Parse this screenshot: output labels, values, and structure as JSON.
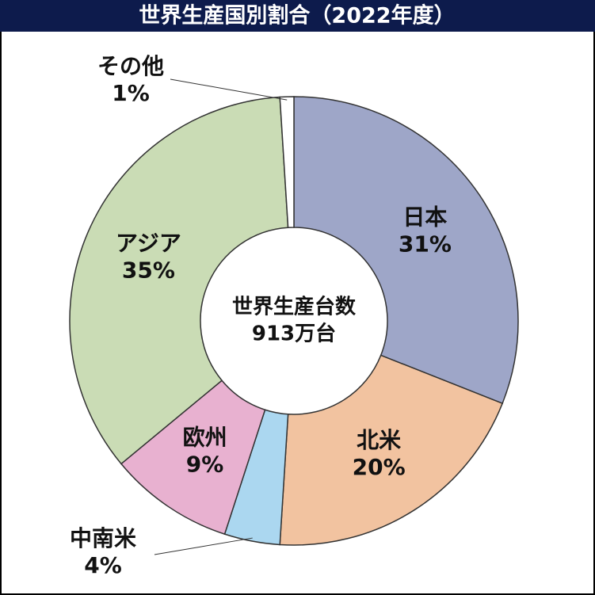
{
  "chart_data": {
    "type": "donut",
    "title": "世界生産国別割合（2022年度）",
    "center_title": "世界生産台数",
    "center_value": "913万台",
    "categories": [
      "日本",
      "北米",
      "中南米",
      "欧州",
      "アジア",
      "その他"
    ],
    "values": [
      31,
      20,
      4,
      9,
      35,
      1
    ],
    "value_labels": [
      "31%",
      "20%",
      "4%",
      "9%",
      "35%",
      "1%"
    ],
    "colors": [
      "#9ea6c8",
      "#f2c3a0",
      "#abd7f0",
      "#e8b1d0",
      "#cadcb5",
      "#ffffff"
    ]
  }
}
